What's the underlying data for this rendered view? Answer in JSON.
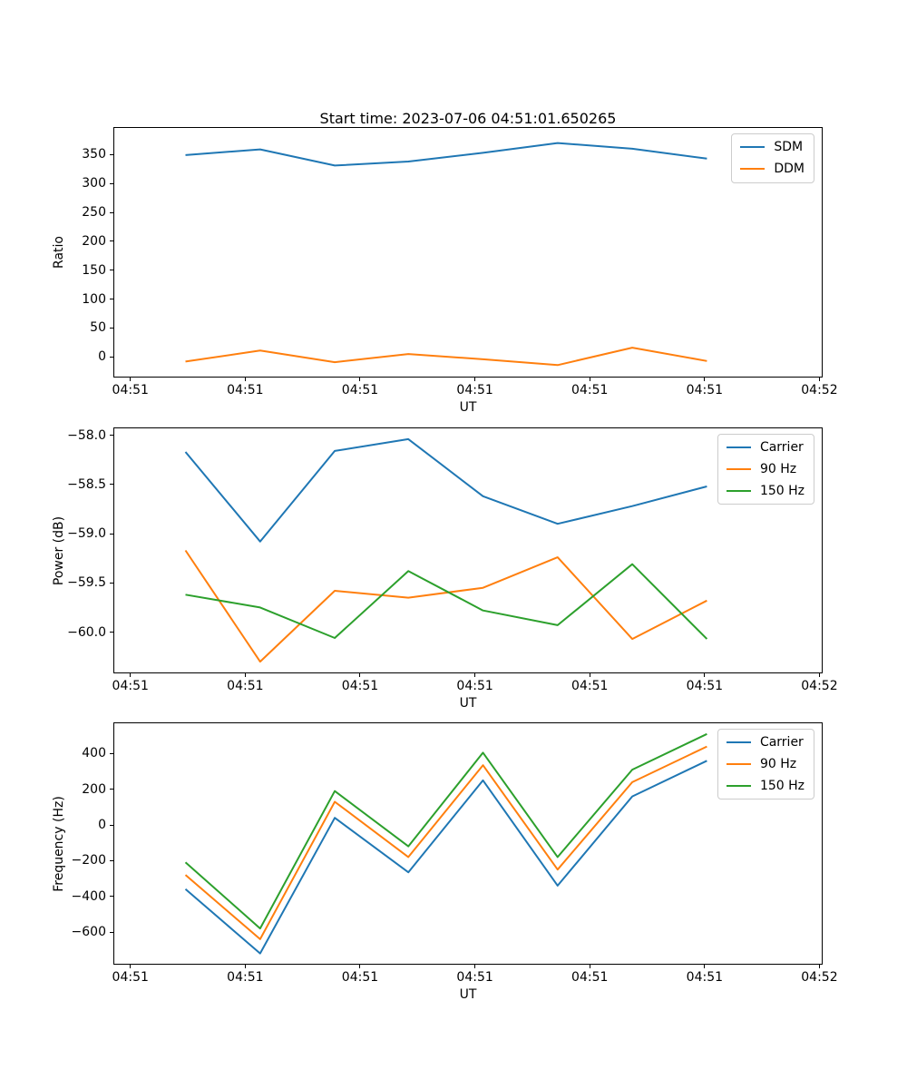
{
  "figure": {
    "title": "Start time: 2023-07-06 04:51:01.650265",
    "background_color": "#ffffff",
    "text_color": "#000000"
  },
  "palette": {
    "blue": "#1f77b4",
    "orange": "#ff7f0e",
    "green": "#2ca02c"
  },
  "chart_data": [
    {
      "type": "line",
      "title": "Start time: 2023-07-06 04:51:01.650265",
      "xlabel": "UT",
      "ylabel": "Ratio",
      "grid": false,
      "legend_position": "upper right",
      "x_seconds_after_04_51": [
        4.8,
        11.3,
        17.8,
        24.2,
        30.7,
        37.2,
        43.7,
        50.2
      ],
      "xlim_seconds_after_04_51": [
        -1.4,
        60.2
      ],
      "x_ticks": {
        "values": [
          0,
          10,
          20,
          30,
          40,
          50,
          60
        ],
        "labels": [
          "04:51",
          "04:51",
          "04:51",
          "04:51",
          "04:51",
          "04:51",
          "04:52"
        ]
      },
      "ylim": [
        -34,
        396
      ],
      "y_ticks": {
        "values": [
          0,
          50,
          100,
          150,
          200,
          250,
          300,
          350
        ],
        "labels": [
          "0",
          "50",
          "100",
          "150",
          "200",
          "250",
          "300",
          "350"
        ]
      },
      "series": [
        {
          "name": "SDM",
          "color": "#1f77b4",
          "values": [
            349,
            359,
            331,
            338,
            353,
            370,
            360,
            343
          ]
        },
        {
          "name": "DDM",
          "color": "#ff7f0e",
          "values": [
            -8,
            11,
            -9,
            5,
            -4,
            -14,
            16,
            -7
          ]
        }
      ]
    },
    {
      "type": "line",
      "title": "",
      "xlabel": "UT",
      "ylabel": "Power (dB)",
      "grid": false,
      "legend_position": "upper right",
      "x_seconds_after_04_51": [
        4.8,
        11.3,
        17.8,
        24.2,
        30.7,
        37.2,
        43.7,
        50.2
      ],
      "xlim_seconds_after_04_51": [
        -1.4,
        60.2
      ],
      "x_ticks": {
        "values": [
          0,
          10,
          20,
          30,
          40,
          50,
          60
        ],
        "labels": [
          "04:51",
          "04:51",
          "04:51",
          "04:51",
          "04:51",
          "04:51",
          "04:52"
        ]
      },
      "ylim": [
        -60.41,
        -57.93
      ],
      "y_ticks": {
        "values": [
          -58.0,
          -58.5,
          -59.0,
          -59.5,
          -60.0
        ],
        "labels": [
          "−58.0",
          "−58.5",
          "−59.0",
          "−59.5",
          "−60.0"
        ]
      },
      "series": [
        {
          "name": "Carrier",
          "color": "#1f77b4",
          "values": [
            -58.17,
            -59.08,
            -58.16,
            -58.04,
            -58.62,
            -58.9,
            -58.72,
            -58.52
          ]
        },
        {
          "name": "90 Hz",
          "color": "#ff7f0e",
          "values": [
            -59.17,
            -60.3,
            -59.58,
            -59.65,
            -59.55,
            -59.24,
            -60.07,
            -59.68
          ]
        },
        {
          "name": "150 Hz",
          "color": "#2ca02c",
          "values": [
            -59.62,
            -59.75,
            -60.06,
            -59.38,
            -59.78,
            -59.93,
            -59.31,
            -60.07
          ]
        }
      ]
    },
    {
      "type": "line",
      "title": "",
      "xlabel": "UT",
      "ylabel": "Frequency (Hz)",
      "grid": false,
      "legend_position": "upper right",
      "x_seconds_after_04_51": [
        4.8,
        11.3,
        17.8,
        24.2,
        30.7,
        37.2,
        43.7,
        50.2
      ],
      "xlim_seconds_after_04_51": [
        -1.4,
        60.2
      ],
      "x_ticks": {
        "values": [
          0,
          10,
          20,
          30,
          40,
          50,
          60
        ],
        "labels": [
          "04:51",
          "04:51",
          "04:51",
          "04:51",
          "04:51",
          "04:51",
          "04:52"
        ]
      },
      "ylim": [
        -778,
        570
      ],
      "y_ticks": {
        "values": [
          400,
          200,
          0,
          -200,
          -400,
          -600
        ],
        "labels": [
          "400",
          "200",
          "0",
          "−200",
          "−400",
          "−600"
        ]
      },
      "series": [
        {
          "name": "Carrier",
          "color": "#1f77b4",
          "values": [
            -360,
            -720,
            40,
            -265,
            250,
            -340,
            160,
            360
          ]
        },
        {
          "name": "90 Hz",
          "color": "#ff7f0e",
          "values": [
            -280,
            -640,
            130,
            -180,
            335,
            -250,
            240,
            440
          ]
        },
        {
          "name": "150 Hz",
          "color": "#2ca02c",
          "values": [
            -210,
            -580,
            190,
            -120,
            405,
            -180,
            310,
            510
          ]
        }
      ]
    }
  ]
}
